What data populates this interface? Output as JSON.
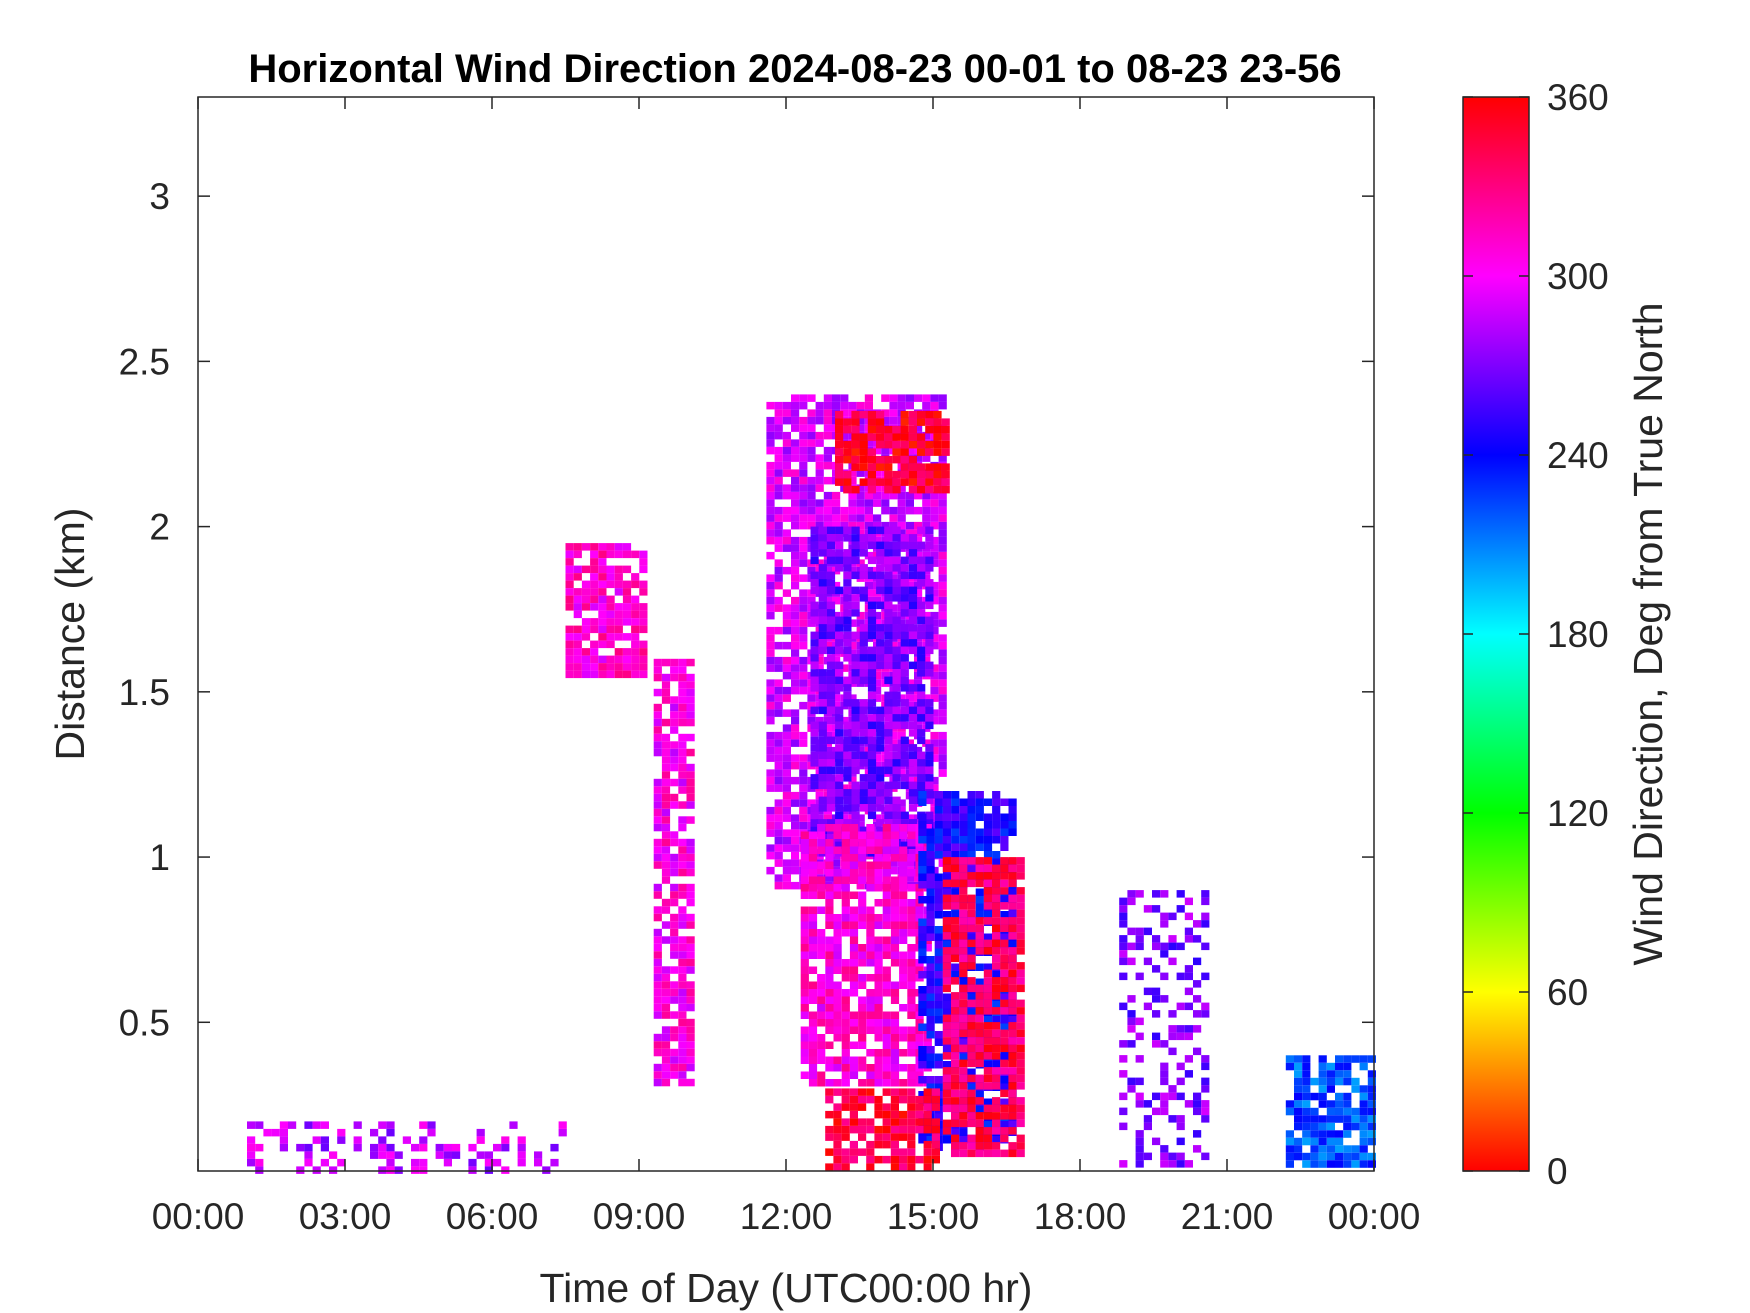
{
  "chart_data": {
    "type": "heatmap",
    "title": "Horizontal Wind Direction 2024-08-23 00-01 to 08-23 23-56",
    "xlabel": "Time of Day (UTC00:00 hr)",
    "ylabel": "Distance (km)",
    "x_tick_labels": [
      "00:00",
      "03:00",
      "06:00",
      "09:00",
      "12:00",
      "15:00",
      "18:00",
      "21:00",
      "00:00"
    ],
    "xlim_hours": [
      0,
      24
    ],
    "y_ticks": [
      0.5,
      1,
      1.5,
      2,
      2.5,
      3
    ],
    "y_tick_labels": [
      "0.5",
      "1",
      "1.5",
      "2",
      "2.5",
      "3"
    ],
    "ylim": [
      0.05,
      3.3
    ],
    "grid": false,
    "colorbar": {
      "label": "Wind Direction, Deg from True North",
      "min": 0,
      "max": 360,
      "tick_labels": [
        "0",
        "60",
        "120",
        "180",
        "240",
        "300",
        "360"
      ],
      "colormap": [
        "#ff0000",
        "#ffff00",
        "#00ff00",
        "#00ffff",
        "#0000ff",
        "#ff00ff",
        "#ff0000"
      ]
    },
    "regions": [
      {
        "t0": 11.6,
        "t1": 15.3,
        "d0": 0.9,
        "d1": 2.4,
        "dir": 292
      },
      {
        "t0": 12.5,
        "t1": 15.0,
        "d0": 1.0,
        "d1": 2.0,
        "dir": 268
      },
      {
        "t0": 12.3,
        "t1": 15.0,
        "d0": 0.3,
        "d1": 1.1,
        "dir": 308
      },
      {
        "t0": 14.7,
        "t1": 16.7,
        "d0": 0.1,
        "d1": 1.2,
        "dir": 245
      },
      {
        "t0": 15.2,
        "t1": 16.8,
        "d0": 0.1,
        "d1": 1.0,
        "dir": 338
      },
      {
        "t0": 13.0,
        "t1": 15.4,
        "d0": 2.1,
        "d1": 2.35,
        "dir": 350
      },
      {
        "t0": 12.8,
        "t1": 15.2,
        "d0": 0.05,
        "d1": 0.3,
        "dir": 345
      },
      {
        "t0": 7.5,
        "t1": 9.2,
        "d0": 1.55,
        "d1": 1.95,
        "dir": 310
      },
      {
        "t0": 9.3,
        "t1": 10.2,
        "d0": 0.3,
        "d1": 1.6,
        "dir": 305
      },
      {
        "t0": 22.2,
        "t1": 24.0,
        "d0": 0.05,
        "d1": 0.4,
        "dir": 222
      },
      {
        "t0": 1.0,
        "t1": 7.5,
        "d0": 0.05,
        "d1": 0.2,
        "dir": 285
      },
      {
        "t0": 18.8,
        "t1": 20.7,
        "d0": 0.05,
        "d1": 0.9,
        "dir": 270
      }
    ]
  }
}
